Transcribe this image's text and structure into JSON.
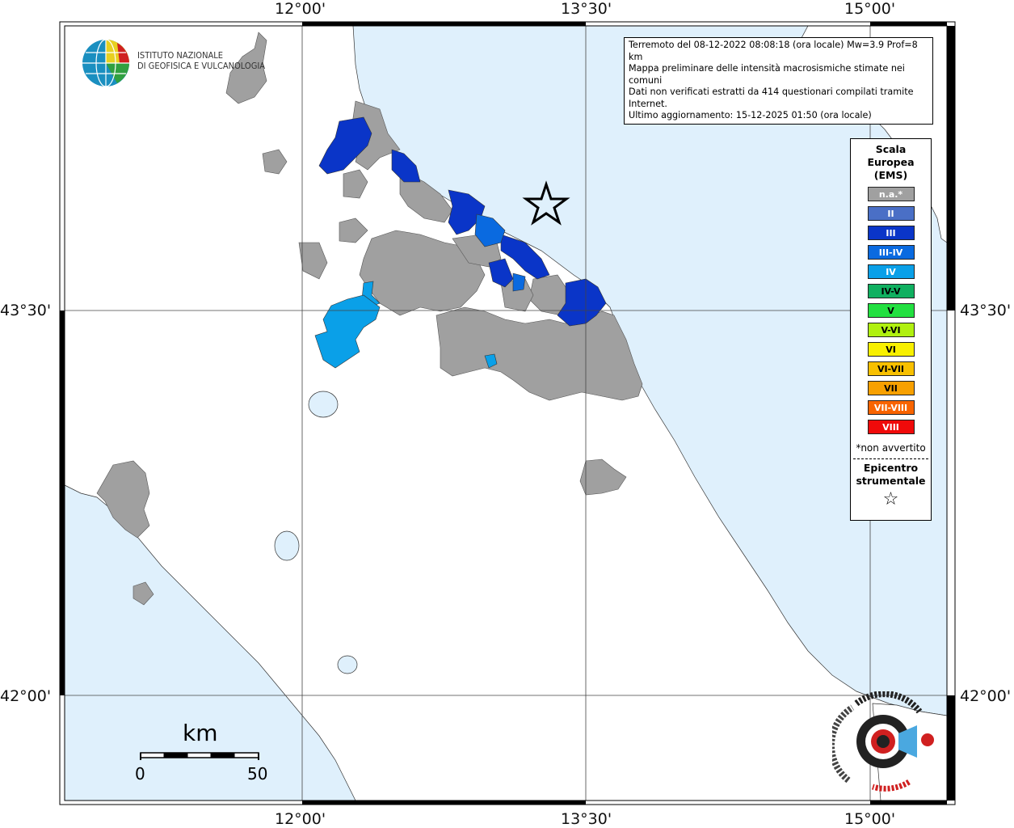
{
  "info": {
    "line1": "Terremoto del 08-12-2022 08:08:18 (ora locale) Mw=3.9 Prof=8 km",
    "line2": "Mappa preliminare delle intensità macrosismiche stimate nei comuni",
    "line3": "Dati non verificati estratti da 414 questionari compilati tramite Internet.",
    "line4": "Ultimo aggiornamento: 15-12-2025 01:50 (ora locale)"
  },
  "coords": {
    "top": [
      "12°00'",
      "13°30'",
      "15°00'"
    ],
    "bottom": [
      "12°00'",
      "13°30'",
      "15°00'"
    ],
    "left": [
      "43°30'",
      "42°00'"
    ],
    "right": [
      "43°30'",
      "42°00'"
    ]
  },
  "logo_ingv": {
    "line1": "ISTITUTO NAZIONALE",
    "line2": "DI GEOFISICA E VULCANOLOGIA"
  },
  "legend": {
    "title1": "Scala",
    "title2": "Europea",
    "title3": "(EMS)",
    "items": [
      {
        "label": "n.a.*",
        "color": "#a0a0a0"
      },
      {
        "label": "II",
        "color": "#4a6fc6"
      },
      {
        "label": "III",
        "color": "#0a35c8"
      },
      {
        "label": "III-IV",
        "color": "#0a6ae0"
      },
      {
        "label": "IV",
        "color": "#0aa0e8"
      },
      {
        "label": "IV-V",
        "color": "#10b060"
      },
      {
        "label": "V",
        "color": "#22e040"
      },
      {
        "label": "V-VI",
        "color": "#b0f010"
      },
      {
        "label": "VI",
        "color": "#f8f000"
      },
      {
        "label": "VI-VII",
        "color": "#f8c000"
      },
      {
        "label": "VII",
        "color": "#f8a000"
      },
      {
        "label": "VII-VIII",
        "color": "#f86400"
      },
      {
        "label": "VIII",
        "color": "#f00a0a"
      }
    ],
    "note": "*non avvertito",
    "epi1": "Epicentro",
    "epi2": "strumentale",
    "star": "☆"
  },
  "scale_bar": {
    "unit": "km",
    "min": "0",
    "max": "50"
  },
  "colors": {
    "sea": "#dff0fc",
    "na": "#a0a0a0",
    "iii": "#0a35c8",
    "iiiiv": "#0a6ae0",
    "iv": "#0aa0e8"
  }
}
